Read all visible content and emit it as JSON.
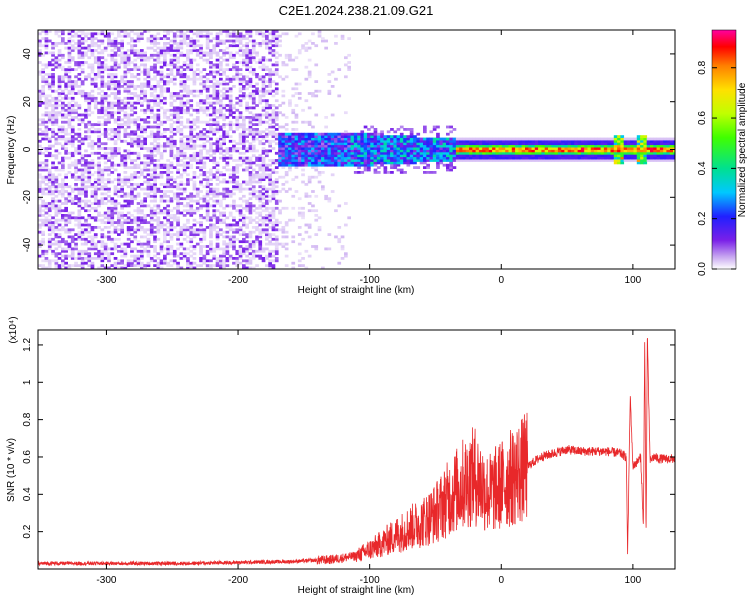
{
  "chart_data": [
    {
      "type": "heatmap",
      "title": "C2E1.2024.238.21.09.G21",
      "xlabel": "Height of straight line (km)",
      "ylabel": "Frequency (Hz)",
      "xlim": [
        -352,
        132
      ],
      "ylim": [
        -50,
        50
      ],
      "xticks": [
        -300,
        -200,
        -100,
        0,
        100
      ],
      "yticks": [
        -40,
        -20,
        0,
        20,
        40
      ],
      "colorbar": {
        "label": "Normalized spectral amplitude",
        "range": [
          0,
          0.95
        ],
        "ticks": [
          "0.0",
          "0.2",
          "0.4",
          "0.6",
          "0.8"
        ],
        "colormap": [
          "#ffffff",
          "#c8a8f0",
          "#7a20e8",
          "#2020ff",
          "#00c8ff",
          "#00e090",
          "#40ff00",
          "#c0ff00",
          "#ffe000",
          "#ff8000",
          "#ff0000",
          "#ff00a0"
        ]
      },
      "regions": [
        {
          "x_range": [
            -352,
            -170
          ],
          "amplitude": "low (0.0-0.1), scattered noise across full frequency range"
        },
        {
          "x_range": [
            -170,
            -35
          ],
          "amplitude": "mixed; signal band -7 to 7 Hz with values 0.15-0.5"
        },
        {
          "x_range": [
            -35,
            132
          ],
          "amplitude": "steady carrier line near 0 Hz, values 0.5-0.9, width about 3 Hz"
        }
      ],
      "grid": false
    },
    {
      "type": "line",
      "xlabel": "Height of straight line (km)",
      "ylabel": "SNR (10 * v/v)",
      "y_multiplier": "(x10⁴)",
      "xlim": [
        -352,
        132
      ],
      "ylim": [
        0,
        1.28
      ],
      "xticks": [
        -300,
        -200,
        -100,
        0,
        100
      ],
      "yticks": [
        "0.2",
        "0.4",
        "0.6",
        "0.8",
        "1",
        "1.2"
      ],
      "color": "#e8282a",
      "series": [
        {
          "x": [
            -352,
            -320,
            -280,
            -240,
            -200,
            -160,
            -130,
            -110,
            -95,
            -80,
            -70,
            -60,
            -50,
            -40,
            -30,
            -20,
            -10,
            0,
            10,
            20,
            30,
            40,
            50,
            60,
            70,
            80,
            90,
            95,
            96,
            98,
            100,
            104,
            106,
            108,
            109,
            110,
            111,
            113,
            116,
            120,
            132
          ],
          "y": [
            0.03,
            0.03,
            0.03,
            0.03,
            0.035,
            0.04,
            0.05,
            0.07,
            0.12,
            0.18,
            0.22,
            0.25,
            0.3,
            0.38,
            0.45,
            0.5,
            0.4,
            0.45,
            0.5,
            0.55,
            0.6,
            0.62,
            0.64,
            0.63,
            0.63,
            0.63,
            0.62,
            0.6,
            0.08,
            0.93,
            0.55,
            0.58,
            0.6,
            0.22,
            1.26,
            0.14,
            1.26,
            0.58,
            0.6,
            0.59,
            0.59
          ]
        }
      ],
      "grid": false
    }
  ]
}
